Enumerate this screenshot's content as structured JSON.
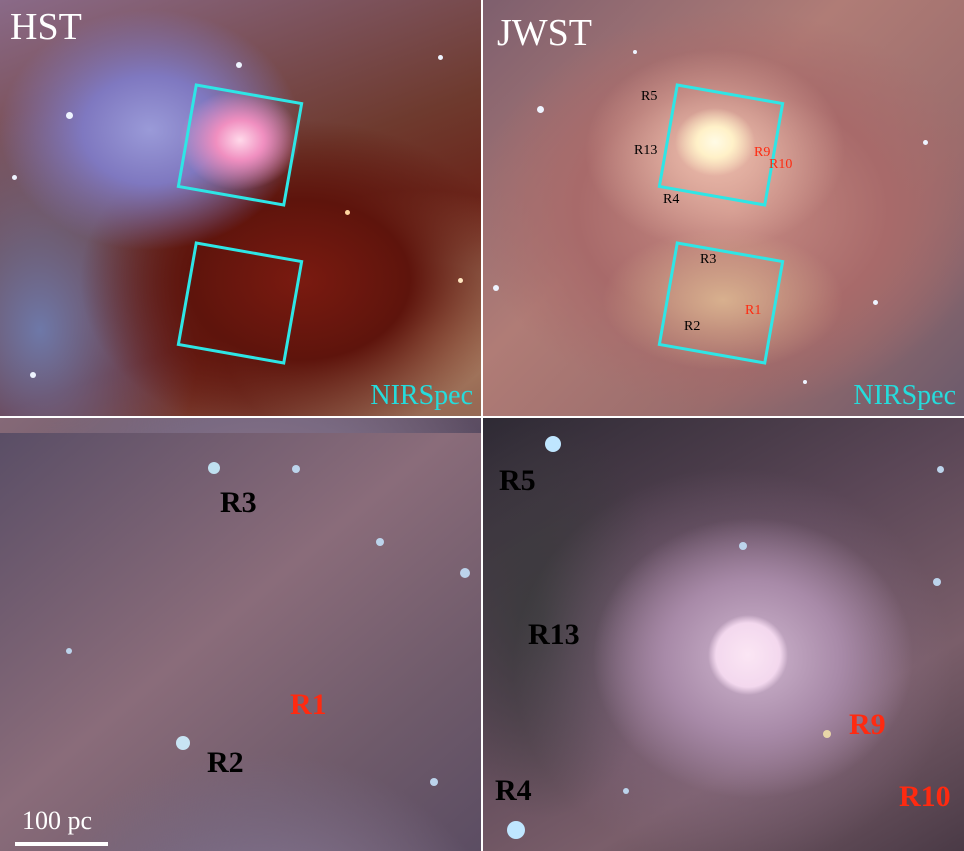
{
  "panels": {
    "hst": {
      "label": "HST",
      "instrument": "NIRSpec"
    },
    "jwst": {
      "label": "JWST",
      "instrument": "NIRSpec"
    }
  },
  "regions": {
    "R1": "R1",
    "R2": "R2",
    "R3": "R3",
    "R4": "R4",
    "R5": "R5",
    "R9": "R9",
    "R10": "R10",
    "R13": "R13"
  },
  "scale_bar": {
    "label": "100 pc"
  },
  "colors": {
    "fov_box": "#2ee6e6",
    "nirspec_text": "#25dcdc",
    "region_black": "#000000",
    "region_red": "#ff2a10"
  }
}
